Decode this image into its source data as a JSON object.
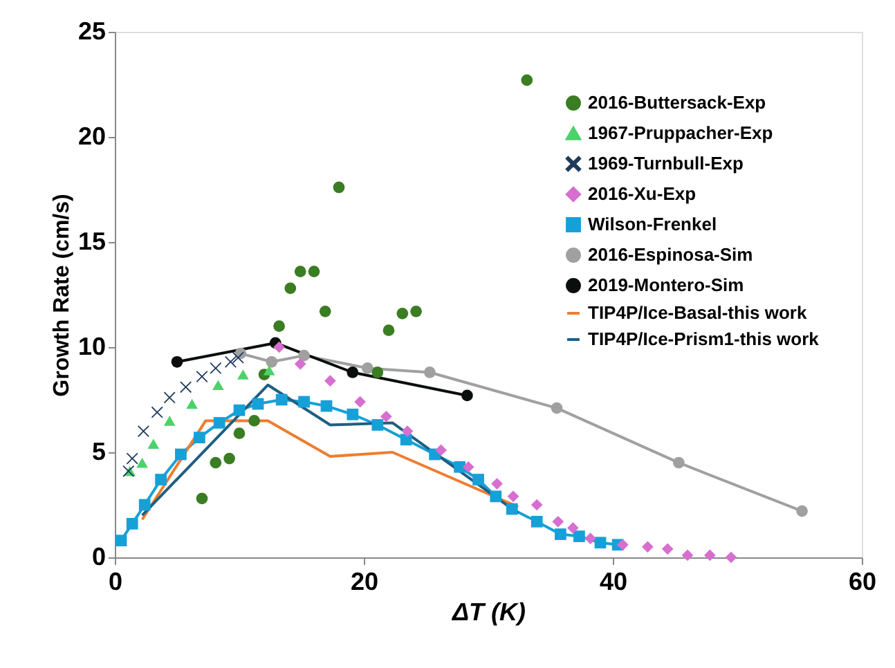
{
  "chart_data": {
    "type": "scatter",
    "xlabel": "ΔT (K)",
    "ylabel": "Growth Rate (cm/s)",
    "xlim": [
      0,
      60
    ],
    "ylim": [
      0,
      25
    ],
    "xticks": [
      0,
      20,
      40,
      60
    ],
    "yticks": [
      0,
      5,
      10,
      15,
      20,
      25
    ],
    "grid": false,
    "legend": "top right",
    "series": [
      {
        "name": "2016-Buttersack-Exp",
        "marker": "circle",
        "color": "#3a7d22",
        "x": [
          33.1,
          18.0,
          14.9,
          16.0,
          14.1,
          16.9,
          13.2,
          22.0,
          23.1,
          24.2,
          21.1,
          12.0,
          11.2,
          10.0,
          9.2,
          8.1,
          7.0
        ],
        "values": [
          22.7,
          17.6,
          13.6,
          13.6,
          12.8,
          11.7,
          11.0,
          10.8,
          11.6,
          11.7,
          8.8,
          8.7,
          6.5,
          5.9,
          4.7,
          4.5,
          2.8
        ]
      },
      {
        "name": "1967-Pruppacher-Exp",
        "marker": "triangle",
        "color": "#4cd26a",
        "x": [
          1.2,
          2.2,
          3.1,
          4.4,
          6.2,
          8.3,
          10.3,
          12.4
        ],
        "values": [
          4.1,
          4.5,
          5.4,
          6.5,
          7.3,
          8.2,
          8.7,
          8.9
        ]
      },
      {
        "name": "1969-Turnbull-Exp",
        "marker": "cross",
        "color": "#1f3a5c",
        "x": [
          1.1,
          1.4,
          2.3,
          3.4,
          4.4,
          5.7,
          7.0,
          8.1,
          9.3,
          9.9
        ],
        "values": [
          4.1,
          4.7,
          6.0,
          6.9,
          7.6,
          8.1,
          8.6,
          9.0,
          9.3,
          9.5
        ]
      },
      {
        "name": "2016-Xu-Exp",
        "marker": "diamond",
        "color": "#d66fcf",
        "x": [
          13.2,
          14.9,
          17.3,
          19.7,
          21.8,
          23.5,
          26.2,
          28.4,
          30.7,
          32.0,
          33.9,
          35.6,
          36.8,
          38.2,
          40.8,
          42.8,
          44.4,
          46.0,
          47.8,
          49.5
        ],
        "values": [
          10.0,
          9.2,
          8.4,
          7.4,
          6.7,
          6.0,
          5.1,
          4.3,
          3.5,
          2.9,
          2.5,
          1.7,
          1.4,
          0.9,
          0.6,
          0.5,
          0.4,
          0.1,
          0.1,
          0.0
        ]
      },
      {
        "name": "Wilson-Frenkel",
        "type": "line",
        "marker": "square",
        "color": "#16a0d8",
        "x": [
          0.5,
          1.4,
          2.4,
          3.7,
          5.3,
          6.8,
          8.4,
          10.0,
          11.5,
          13.4,
          15.2,
          17.0,
          19.1,
          21.1,
          23.4,
          25.7,
          27.7,
          29.2,
          30.6,
          31.9,
          33.9,
          35.8,
          37.3,
          39.0,
          40.4
        ],
        "values": [
          0.8,
          1.6,
          2.5,
          3.7,
          4.9,
          5.7,
          6.4,
          7.0,
          7.3,
          7.5,
          7.4,
          7.2,
          6.8,
          6.3,
          5.6,
          4.9,
          4.3,
          3.7,
          2.9,
          2.3,
          1.7,
          1.1,
          1.0,
          0.7,
          0.6
        ]
      },
      {
        "name": "2016-Espinosa-Sim",
        "type": "line",
        "marker": "circle",
        "color": "#a0a0a0",
        "x": [
          10.1,
          12.6,
          15.2,
          20.3,
          25.3,
          35.5,
          45.3,
          55.2
        ],
        "values": [
          9.7,
          9.3,
          9.6,
          9.0,
          8.8,
          7.1,
          4.5,
          2.2
        ]
      },
      {
        "name": "2019-Montero-Sim",
        "type": "line",
        "marker": "circle",
        "color": "#0b0f0b",
        "x": [
          5.0,
          12.9,
          19.1,
          28.3
        ],
        "values": [
          9.3,
          10.2,
          8.8,
          7.7
        ]
      },
      {
        "name": "TIP4P/Ice-Basal-this work",
        "type": "line",
        "marker": "none",
        "color": "#ed7d31",
        "x": [
          2.2,
          7.3,
          12.3,
          17.3,
          22.3,
          32.4
        ],
        "values": [
          1.8,
          6.5,
          6.5,
          4.8,
          5.0,
          2.4
        ]
      },
      {
        "name": "TIP4P/Ice-Prism1-this work",
        "type": "line",
        "marker": "none",
        "color": "#1f5f82",
        "x": [
          2.2,
          12.3,
          17.3,
          22.3,
          32.4
        ],
        "values": [
          2.0,
          8.2,
          6.3,
          6.4,
          2.1
        ]
      }
    ]
  }
}
